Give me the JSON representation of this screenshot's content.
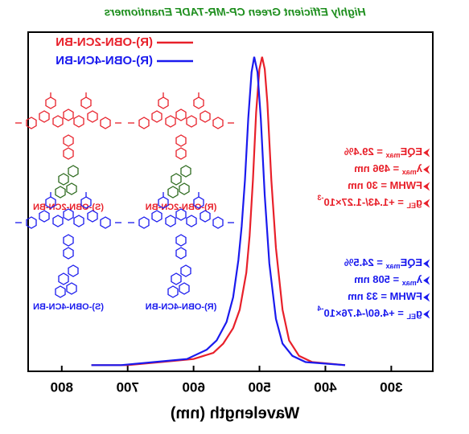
{
  "chart_data": {
    "type": "line",
    "mirrored": true,
    "title": "Highly Efficient Green CP-MR-TADF Enantiomers",
    "title_color": "#1f8f1f",
    "xlabel": "Wavelength (nm)",
    "xlim": [
      237,
      851
    ],
    "xticks": [
      300,
      400,
      500,
      600,
      700,
      800
    ],
    "ylim": [
      -0.02,
      1.08
    ],
    "legend": "upper-right",
    "series": [
      {
        "name": "(R)-OBN-2CN-BN",
        "color": "#e8202a",
        "x": [
          370,
          420,
          440,
          455,
          465,
          475,
          482,
          488,
          492,
          496,
          500,
          505,
          510,
          515,
          520,
          530,
          540,
          555,
          570,
          600,
          650,
          700,
          755
        ],
        "values": [
          0,
          0.01,
          0.03,
          0.08,
          0.18,
          0.38,
          0.6,
          0.85,
          0.96,
          1,
          0.96,
          0.82,
          0.6,
          0.42,
          0.3,
          0.18,
          0.12,
          0.07,
          0.04,
          0.02,
          0.01,
          0,
          0
        ]
      },
      {
        "name": "(R)-OBN-4CN-BN",
        "color": "#1a1aee",
        "x": [
          370,
          430,
          450,
          465,
          475,
          485,
          492,
          498,
          503,
          508,
          512,
          517,
          522,
          527,
          532,
          540,
          550,
          565,
          580,
          610,
          660,
          710,
          755
        ],
        "values": [
          0,
          0.01,
          0.03,
          0.07,
          0.15,
          0.33,
          0.55,
          0.8,
          0.95,
          1,
          0.95,
          0.8,
          0.6,
          0.45,
          0.34,
          0.22,
          0.14,
          0.08,
          0.05,
          0.02,
          0.01,
          0,
          0
        ]
      }
    ],
    "molecules": [
      {
        "label": "(R)-OBN-2CN-BN",
        "color": "#e8202a"
      },
      {
        "label": "(S)-OBN-2CN-BN",
        "color": "#e8202a"
      },
      {
        "label": "(R)-OBN-4CN-BN",
        "color": "#1a1aee"
      },
      {
        "label": "(S)-OBN-4CN-BN",
        "color": "#1a1aee"
      }
    ],
    "annotations": [
      {
        "color": "#e8202a",
        "lines": [
          {
            "text": "EQE",
            "sub": "max",
            "rest": " = 29.4%"
          },
          {
            "text": "λ",
            "sub": "max",
            "rest": " = 496 nm"
          },
          {
            "text": "FWHM = 30 nm"
          },
          {
            "text": "g",
            "sub": "EL",
            "rest": " = +1.43/-1.27×10",
            "sup": "-3"
          }
        ]
      },
      {
        "color": "#1a1aee",
        "lines": [
          {
            "text": "EQE",
            "sub": "max",
            "rest": " = 24.5%"
          },
          {
            "text": "λ",
            "sub": "max",
            "rest": " = 508 nm"
          },
          {
            "text": "FWHM = 33 nm"
          },
          {
            "text": "g",
            "sub": "EL",
            "rest": " = +4.60/-4.76×10",
            "sup": "-4"
          }
        ]
      }
    ]
  }
}
